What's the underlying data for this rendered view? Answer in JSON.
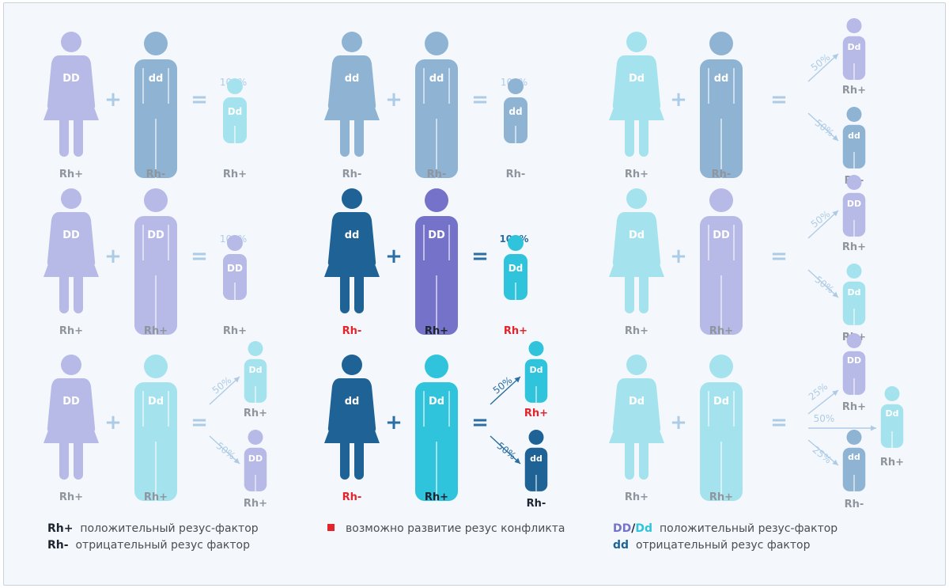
{
  "colors": {
    "lavender": "#b7b9e6",
    "steel": "#8fb3d3",
    "cyan": "#a4e3ee",
    "navy": "#1f6296",
    "purple": "#7473c9",
    "teal": "#2fc3dc",
    "gray_label": "#8e959d",
    "red": "#e3242b",
    "dark": "#1d2530",
    "light_op": "#aecbe6",
    "mid_op": "#2b6ea3"
  },
  "legend": {
    "rh_pos_key": "Rh+",
    "rh_pos_text": "положительный резус-фактор",
    "rh_neg_key": "Rh-",
    "rh_neg_text": "отрицательный резус фактор",
    "conflict_text": "возможно развитие резус конфликта",
    "dd_key": "DD",
    "slash": "/",
    "dd2_key": "Dd",
    "dd_pos_text": "положительный резус-фактор",
    "dd_neg_key": "dd",
    "dd_neg_text": "отрицательный резус фактор"
  },
  "scenarios": [
    {
      "mother": {
        "geno": "DD",
        "rh": "Rh+",
        "color": "lavender"
      },
      "father": {
        "geno": "dd",
        "rh": "Rh-",
        "color": "steel"
      },
      "children": [
        {
          "geno": "Dd",
          "rh": "Rh+",
          "pct": "100%",
          "color": "cyan"
        }
      ]
    },
    {
      "mother": {
        "geno": "dd",
        "rh": "Rh-",
        "color": "steel"
      },
      "father": {
        "geno": "dd",
        "rh": "Rh-",
        "color": "steel"
      },
      "children": [
        {
          "geno": "dd",
          "rh": "Rh-",
          "pct": "100%",
          "color": "steel"
        }
      ]
    },
    {
      "mother": {
        "geno": "Dd",
        "rh": "Rh+",
        "color": "cyan"
      },
      "father": {
        "geno": "dd",
        "rh": "Rh-",
        "color": "steel"
      },
      "children": [
        {
          "geno": "Dd",
          "rh": "Rh+",
          "pct": "50%",
          "color": "lavender"
        },
        {
          "geno": "dd",
          "rh": "Rh-",
          "pct": "50%",
          "color": "steel"
        }
      ]
    },
    {
      "mother": {
        "geno": "DD",
        "rh": "Rh+",
        "color": "lavender"
      },
      "father": {
        "geno": "DD",
        "rh": "Rh+",
        "color": "lavender"
      },
      "children": [
        {
          "geno": "DD",
          "rh": "Rh+",
          "pct": "100%",
          "color": "lavender"
        }
      ]
    },
    {
      "mother": {
        "geno": "dd",
        "rh": "Rh-",
        "color": "navy"
      },
      "father": {
        "geno": "DD",
        "rh": "Rh+",
        "color": "purple"
      },
      "children": [
        {
          "geno": "Dd",
          "rh": "Rh+",
          "pct": "100%",
          "color": "teal"
        }
      ]
    },
    {
      "mother": {
        "geno": "Dd",
        "rh": "Rh+",
        "color": "cyan"
      },
      "father": {
        "geno": "DD",
        "rh": "Rh+",
        "color": "lavender"
      },
      "children": [
        {
          "geno": "DD",
          "rh": "Rh+",
          "pct": "50%",
          "color": "lavender"
        },
        {
          "geno": "Dd",
          "rh": "Rh+",
          "pct": "50%",
          "color": "cyan"
        }
      ]
    },
    {
      "mother": {
        "geno": "DD",
        "rh": "Rh+",
        "color": "lavender"
      },
      "father": {
        "geno": "Dd",
        "rh": "Rh+",
        "color": "cyan"
      },
      "children": [
        {
          "geno": "Dd",
          "rh": "Rh+",
          "pct": "50%",
          "color": "cyan"
        },
        {
          "geno": "DD",
          "rh": "Rh+",
          "pct": "50%",
          "color": "lavender"
        }
      ]
    },
    {
      "mother": {
        "geno": "dd",
        "rh": "Rh-",
        "color": "navy"
      },
      "father": {
        "geno": "Dd",
        "rh": "Rh+",
        "color": "teal"
      },
      "children": [
        {
          "geno": "Dd",
          "rh": "Rh+",
          "pct": "50%",
          "color": "teal"
        },
        {
          "geno": "dd",
          "rh": "Rh-",
          "pct": "50%",
          "color": "navy"
        }
      ]
    },
    {
      "mother": {
        "geno": "Dd",
        "rh": "Rh+",
        "color": "cyan"
      },
      "father": {
        "geno": "Dd",
        "rh": "Rh+",
        "color": "cyan"
      },
      "children": [
        {
          "geno": "DD",
          "rh": "Rh+",
          "pct": "25%",
          "color": "lavender"
        },
        {
          "geno": "Dd",
          "rh": "Rh+",
          "pct": "50%",
          "color": "cyan"
        },
        {
          "geno": "dd",
          "rh": "Rh-",
          "pct": "25%",
          "color": "steel"
        }
      ]
    }
  ],
  "symbols": {
    "plus": "+",
    "equals": "="
  }
}
